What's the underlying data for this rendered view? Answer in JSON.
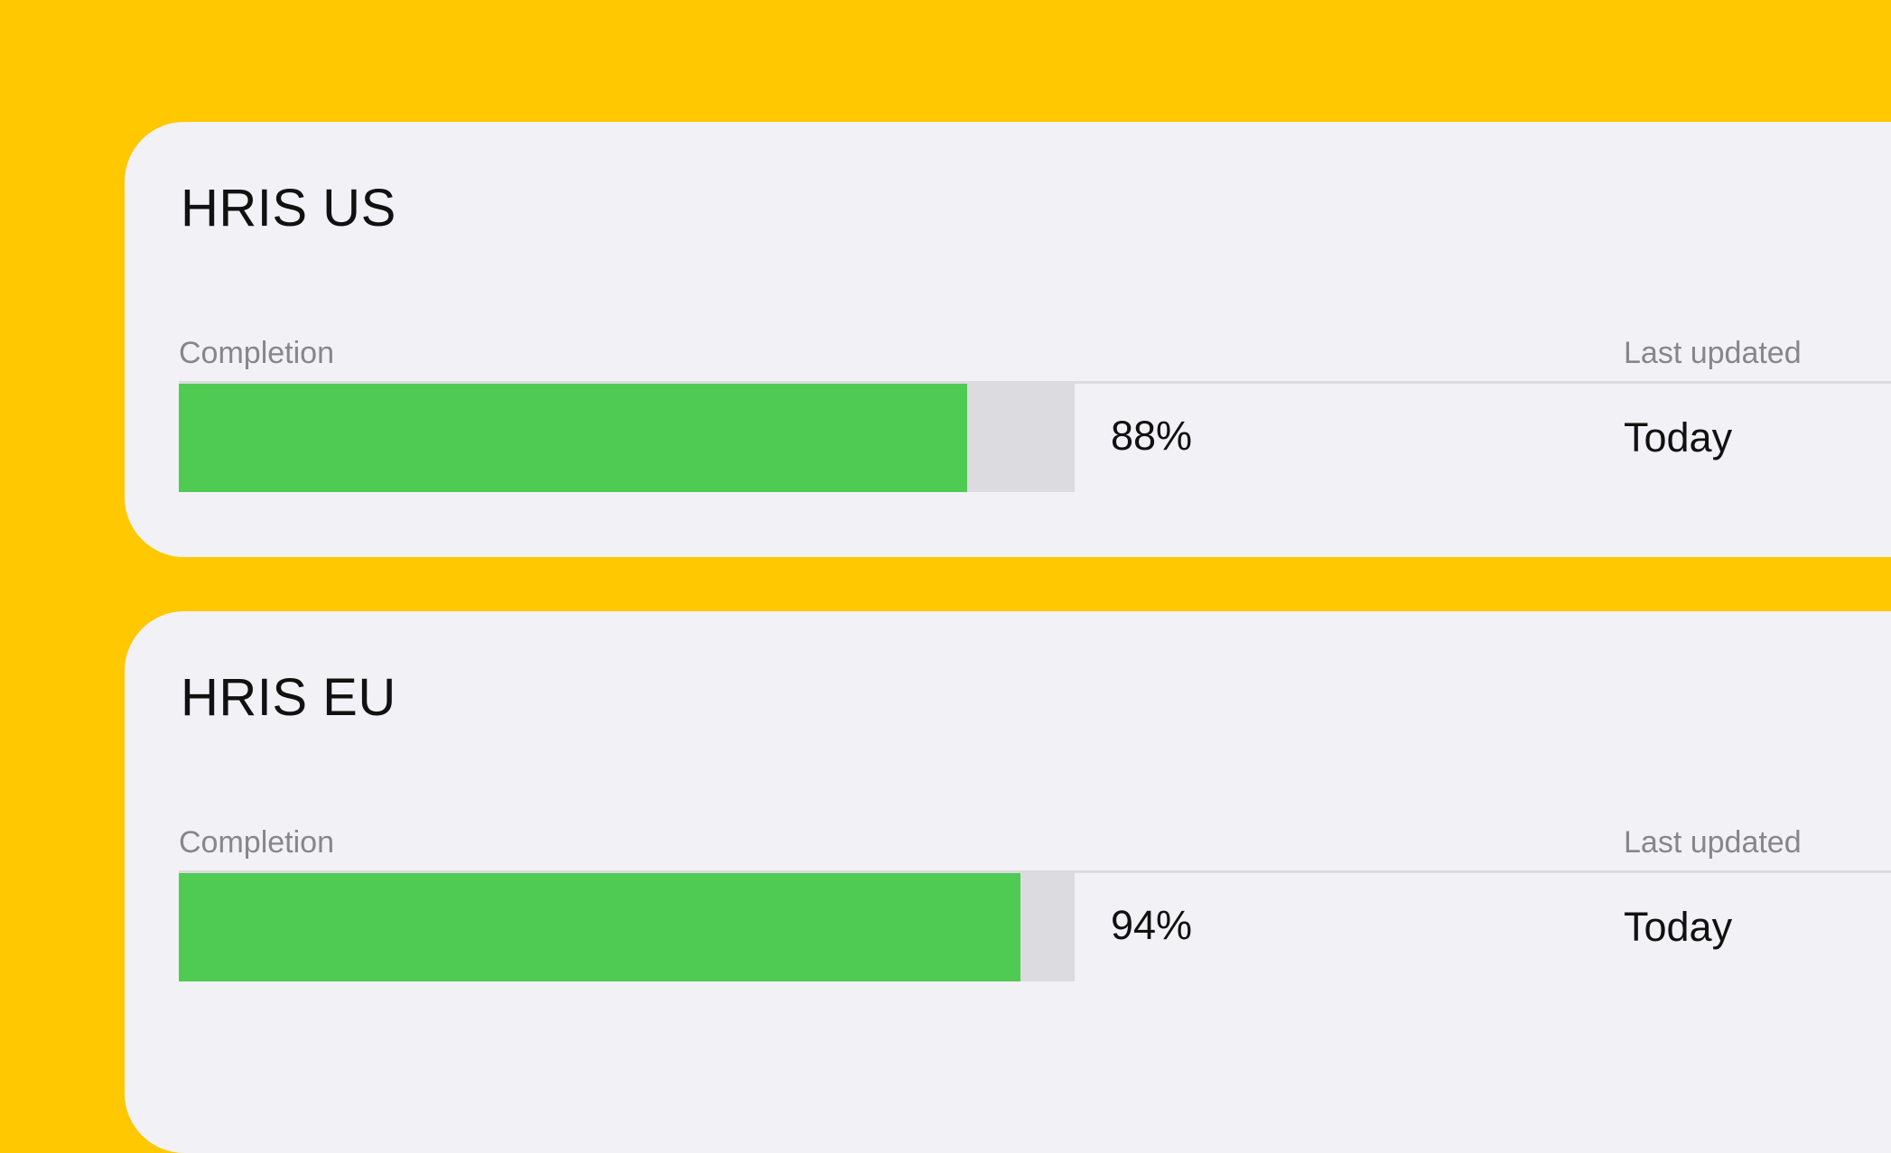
{
  "colors": {
    "background": "#FFC800",
    "card": "#F2F2F6",
    "progress_fill": "#4FCB53",
    "progress_track": "#DCDCE0"
  },
  "cards": [
    {
      "title": "HRIS US",
      "completion_label": "Completion",
      "completion_value": 88,
      "completion_text": "88%",
      "last_updated_label": "Last updated",
      "last_updated_value": "Today"
    },
    {
      "title": "HRIS EU",
      "completion_label": "Completion",
      "completion_value": 94,
      "completion_text": "94%",
      "last_updated_label": "Last updated",
      "last_updated_value": "Today"
    }
  ]
}
